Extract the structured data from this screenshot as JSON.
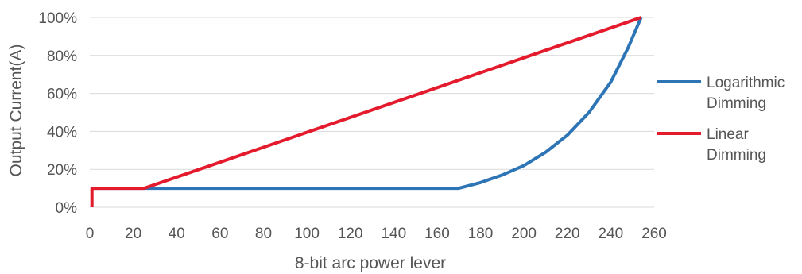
{
  "chart_data": {
    "type": "line",
    "title": "",
    "xlabel": "8-bit arc power lever",
    "ylabel": "Output Current(A)",
    "xlim": [
      0,
      260
    ],
    "ylim": [
      0,
      100
    ],
    "x_ticks": [
      0,
      20,
      40,
      60,
      80,
      100,
      120,
      140,
      160,
      180,
      200,
      220,
      240,
      260
    ],
    "y_ticks": [
      0,
      20,
      40,
      60,
      80,
      100
    ],
    "y_tick_labels": [
      "0%",
      "20%",
      "40%",
      "60%",
      "80%",
      "100%"
    ],
    "grid": "horizontal",
    "legend_position": "right",
    "series": [
      {
        "name": "Logarithmic Dimming",
        "legend_lines": [
          "Logarithmic",
          "Dimming"
        ],
        "color": "#2E75B6",
        "x": [
          1,
          25,
          170,
          180,
          190,
          200,
          210,
          220,
          230,
          240,
          248,
          254
        ],
        "y": [
          10,
          10,
          10,
          13,
          17,
          22,
          29,
          38,
          50,
          66,
          84,
          100
        ]
      },
      {
        "name": "Linear Dimming",
        "legend_lines": [
          "Linear",
          "Dimming"
        ],
        "color": "#E31B2D",
        "x": [
          1,
          1,
          25,
          254
        ],
        "y": [
          0,
          10,
          10,
          100
        ]
      }
    ]
  }
}
